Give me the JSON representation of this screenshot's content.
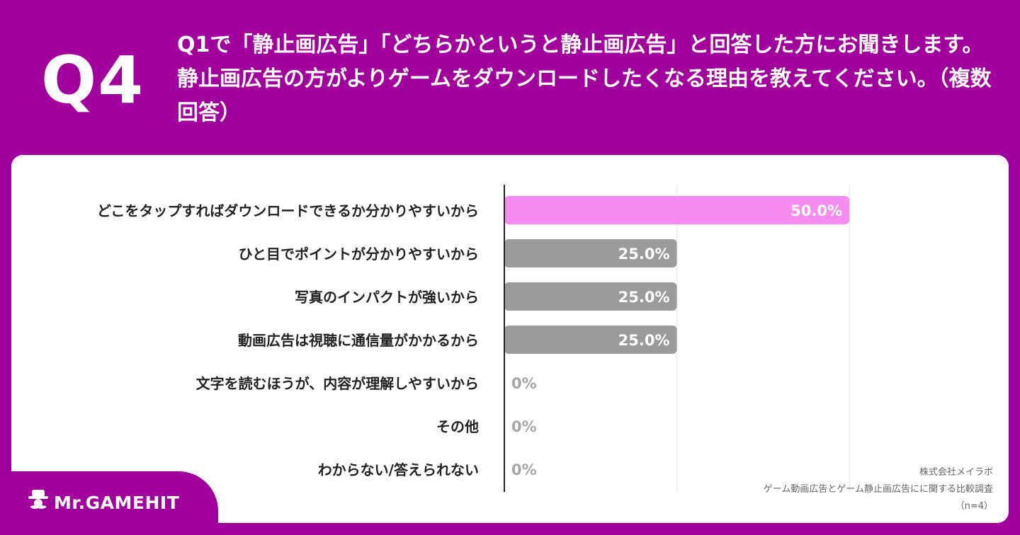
{
  "header": {
    "q_label": "Q4",
    "question": "Q1で「静止画広告」「どちらかというと静止画広告」と回答した方にお聞きします。静止画広告の方がよりゲームをダウンロードしたくなる理由を教えてください。（複数回答）"
  },
  "chart_data": {
    "type": "bar",
    "orientation": "horizontal",
    "categories": [
      "どこをタップすればダウンロードできるか分かりやすいから",
      "ひと目でポイントが分かりやすいから",
      "写真のインパクトが強いから",
      "動画広告は視聴に通信量がかかるから",
      "文字を読むほうが、内容が理解しやすいから",
      "その他",
      "わからない/答えられない"
    ],
    "values": [
      50.0,
      25.0,
      25.0,
      25.0,
      0,
      0,
      0
    ],
    "value_labels": [
      "50.0%",
      "25.0%",
      "25.0%",
      "25.0%",
      "0%",
      "0%",
      "0%"
    ],
    "xlim": [
      0,
      100
    ],
    "grid": true,
    "colors": {
      "highlight": "#f68cf0",
      "default": "#9b9b9b",
      "zero_label": "#a6a6a6",
      "grid": "#eeeef8"
    }
  },
  "footer": {
    "logo_text": "Mr.GAMEHIT",
    "source_company": "株式会社メイラボ",
    "source_survey": "ゲーム動画広告とゲーム静止画広告にに関する比較調査",
    "sample": "（n=4）"
  }
}
